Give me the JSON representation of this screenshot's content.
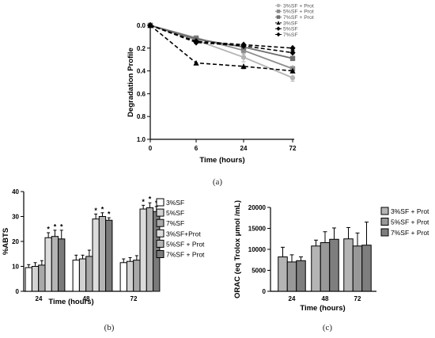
{
  "chart_data": [
    {
      "id": "a",
      "type": "line",
      "panel_label": "(a)",
      "xlabel": "Time (hours)",
      "ylabel": "Degradation Profile",
      "x": [
        "0",
        "6",
        "24",
        "72"
      ],
      "xticks": [
        "0",
        "6",
        "24",
        "72"
      ],
      "yticks": [
        "0.0",
        "0.2",
        "0.4",
        "0.6",
        "0.8",
        "1.0"
      ],
      "ylim": [
        0,
        1.0
      ],
      "y_inverted": true,
      "grid": false,
      "legend_position": "top-right",
      "series": [
        {
          "name": "3%SF + Prot",
          "values": [
            0,
            0.13,
            0.28,
            0.46
          ],
          "errors": [
            0,
            0.03,
            0.04,
            0.03
          ],
          "color": "#b4b4b4",
          "dashed": false,
          "marker": "circle"
        },
        {
          "name": "5%SF + Prot",
          "values": [
            0,
            0.11,
            0.22,
            0.38
          ],
          "errors": [
            0,
            0.02,
            0.03,
            0.03
          ],
          "color": "#8c8c8c",
          "dashed": false,
          "marker": "square"
        },
        {
          "name": "7%SF + Prot",
          "values": [
            0,
            0.12,
            0.19,
            0.29
          ],
          "errors": [
            0,
            0.02,
            0.02,
            0.02
          ],
          "color": "#6e6e6e",
          "dashed": false,
          "marker": "square"
        },
        {
          "name": "3%SF",
          "values": [
            0,
            0.33,
            0.36,
            0.4
          ],
          "errors": [
            0,
            0.01,
            0.02,
            0.01
          ],
          "color": "#000000",
          "dashed": true,
          "marker": "triangle"
        },
        {
          "name": "5%SF",
          "values": [
            0,
            0.14,
            0.17,
            0.2
          ],
          "errors": [
            0,
            0.01,
            0.01,
            0.02
          ],
          "color": "#000000",
          "dashed": true,
          "marker": "diamond"
        },
        {
          "name": "7%SF",
          "values": [
            0,
            0.15,
            0.18,
            0.24
          ],
          "errors": [
            0,
            0.01,
            0.01,
            0.01
          ],
          "color": "#000000",
          "dashed": true,
          "marker": "diamond"
        }
      ]
    },
    {
      "id": "b",
      "type": "bar",
      "panel_label": "(b)",
      "xlabel": "Time (hours)",
      "ylabel": "%ABTS",
      "categories": [
        "24",
        "48",
        "72"
      ],
      "yticks": [
        "0",
        "10",
        "20",
        "30",
        "40"
      ],
      "ylim": [
        0,
        40
      ],
      "legend_position": "right",
      "significance_marker": "*",
      "series": [
        {
          "name": "3%SF",
          "values": [
            9.5,
            12.5,
            11.5
          ],
          "errors": [
            1.2,
            2.0,
            1.5
          ],
          "color": "#ffffff",
          "significant": [
            false,
            false,
            false
          ]
        },
        {
          "name": "5%SF",
          "values": [
            10.0,
            13.0,
            12.0
          ],
          "errors": [
            1.5,
            1.5,
            1.5
          ],
          "color": "#d2d2d2",
          "significant": [
            false,
            false,
            false
          ]
        },
        {
          "name": "7%SF",
          "values": [
            10.5,
            14.0,
            12.5
          ],
          "errors": [
            1.8,
            2.5,
            1.8
          ],
          "color": "#a8a8a8",
          "significant": [
            false,
            false,
            false
          ]
        },
        {
          "name": "3%SF+Prot",
          "values": [
            21.5,
            29.0,
            33.0
          ],
          "errors": [
            2.0,
            2.0,
            1.5
          ],
          "color": "#dcdcdc",
          "significant": [
            true,
            true,
            true
          ]
        },
        {
          "name": "5%SF + Prot",
          "values": [
            22.0,
            30.0,
            33.5
          ],
          "errors": [
            2.5,
            1.5,
            2.0
          ],
          "color": "#b4b4b4",
          "significant": [
            true,
            true,
            true
          ]
        },
        {
          "name": "7%SF + Prot",
          "values": [
            21.0,
            28.5,
            32.0
          ],
          "errors": [
            3.5,
            1.0,
            2.0
          ],
          "color": "#7a7a7a",
          "significant": [
            true,
            true,
            true
          ]
        }
      ]
    },
    {
      "id": "c",
      "type": "bar",
      "panel_label": "(c)",
      "xlabel": "Time (hours)",
      "ylabel": "ORAC (eq Trolox μmol /mL)",
      "categories": [
        "24",
        "48",
        "72"
      ],
      "yticks": [
        "0",
        "5000",
        "10000",
        "15000",
        "20000"
      ],
      "ylim": [
        0,
        20000
      ],
      "legend_position": "top-right",
      "series": [
        {
          "name": "3%SF + Prot",
          "values": [
            8200,
            10800,
            12500
          ],
          "errors": [
            2300,
            1400,
            2700
          ],
          "color": "#b4b4b4"
        },
        {
          "name": "5%SF + Prot",
          "values": [
            7000,
            11600,
            10800
          ],
          "errors": [
            1700,
            2600,
            3100
          ],
          "color": "#989898"
        },
        {
          "name": "7%SF + Prot",
          "values": [
            7300,
            12400,
            11000
          ],
          "errors": [
            900,
            2700,
            5500
          ],
          "color": "#7e7e7e"
        }
      ]
    }
  ]
}
